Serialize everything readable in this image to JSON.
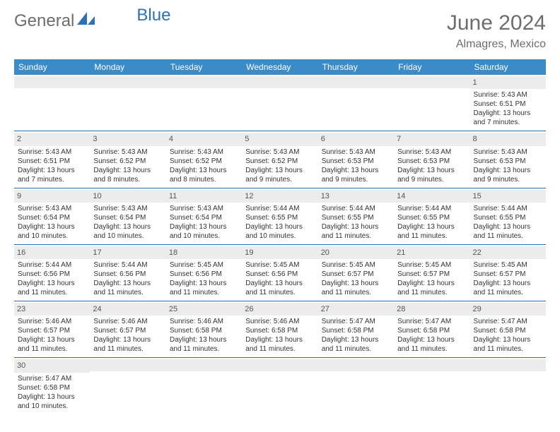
{
  "brand": {
    "part1": "General",
    "part2": "Blue"
  },
  "title": {
    "month": "June 2024",
    "location": "Almagres, Mexico"
  },
  "colors": {
    "header_bg": "#3b8bc9",
    "row_divider": "#2d6da8",
    "daynum_bg": "#ececec",
    "text": "#333333",
    "title_text": "#6d6d6d"
  },
  "weekday_labels": [
    "Sunday",
    "Monday",
    "Tuesday",
    "Wednesday",
    "Thursday",
    "Friday",
    "Saturday"
  ],
  "weeks": [
    [
      {
        "n": "",
        "lines": []
      },
      {
        "n": "",
        "lines": []
      },
      {
        "n": "",
        "lines": []
      },
      {
        "n": "",
        "lines": []
      },
      {
        "n": "",
        "lines": []
      },
      {
        "n": "",
        "lines": []
      },
      {
        "n": "1",
        "lines": [
          "Sunrise: 5:43 AM",
          "Sunset: 6:51 PM",
          "Daylight: 13 hours and 7 minutes."
        ]
      }
    ],
    [
      {
        "n": "2",
        "lines": [
          "Sunrise: 5:43 AM",
          "Sunset: 6:51 PM",
          "Daylight: 13 hours and 7 minutes."
        ]
      },
      {
        "n": "3",
        "lines": [
          "Sunrise: 5:43 AM",
          "Sunset: 6:52 PM",
          "Daylight: 13 hours and 8 minutes."
        ]
      },
      {
        "n": "4",
        "lines": [
          "Sunrise: 5:43 AM",
          "Sunset: 6:52 PM",
          "Daylight: 13 hours and 8 minutes."
        ]
      },
      {
        "n": "5",
        "lines": [
          "Sunrise: 5:43 AM",
          "Sunset: 6:52 PM",
          "Daylight: 13 hours and 9 minutes."
        ]
      },
      {
        "n": "6",
        "lines": [
          "Sunrise: 5:43 AM",
          "Sunset: 6:53 PM",
          "Daylight: 13 hours and 9 minutes."
        ]
      },
      {
        "n": "7",
        "lines": [
          "Sunrise: 5:43 AM",
          "Sunset: 6:53 PM",
          "Daylight: 13 hours and 9 minutes."
        ]
      },
      {
        "n": "8",
        "lines": [
          "Sunrise: 5:43 AM",
          "Sunset: 6:53 PM",
          "Daylight: 13 hours and 9 minutes."
        ]
      }
    ],
    [
      {
        "n": "9",
        "lines": [
          "Sunrise: 5:43 AM",
          "Sunset: 6:54 PM",
          "Daylight: 13 hours and 10 minutes."
        ]
      },
      {
        "n": "10",
        "lines": [
          "Sunrise: 5:43 AM",
          "Sunset: 6:54 PM",
          "Daylight: 13 hours and 10 minutes."
        ]
      },
      {
        "n": "11",
        "lines": [
          "Sunrise: 5:43 AM",
          "Sunset: 6:54 PM",
          "Daylight: 13 hours and 10 minutes."
        ]
      },
      {
        "n": "12",
        "lines": [
          "Sunrise: 5:44 AM",
          "Sunset: 6:55 PM",
          "Daylight: 13 hours and 10 minutes."
        ]
      },
      {
        "n": "13",
        "lines": [
          "Sunrise: 5:44 AM",
          "Sunset: 6:55 PM",
          "Daylight: 13 hours and 11 minutes."
        ]
      },
      {
        "n": "14",
        "lines": [
          "Sunrise: 5:44 AM",
          "Sunset: 6:55 PM",
          "Daylight: 13 hours and 11 minutes."
        ]
      },
      {
        "n": "15",
        "lines": [
          "Sunrise: 5:44 AM",
          "Sunset: 6:55 PM",
          "Daylight: 13 hours and 11 minutes."
        ]
      }
    ],
    [
      {
        "n": "16",
        "lines": [
          "Sunrise: 5:44 AM",
          "Sunset: 6:56 PM",
          "Daylight: 13 hours and 11 minutes."
        ]
      },
      {
        "n": "17",
        "lines": [
          "Sunrise: 5:44 AM",
          "Sunset: 6:56 PM",
          "Daylight: 13 hours and 11 minutes."
        ]
      },
      {
        "n": "18",
        "lines": [
          "Sunrise: 5:45 AM",
          "Sunset: 6:56 PM",
          "Daylight: 13 hours and 11 minutes."
        ]
      },
      {
        "n": "19",
        "lines": [
          "Sunrise: 5:45 AM",
          "Sunset: 6:56 PM",
          "Daylight: 13 hours and 11 minutes."
        ]
      },
      {
        "n": "20",
        "lines": [
          "Sunrise: 5:45 AM",
          "Sunset: 6:57 PM",
          "Daylight: 13 hours and 11 minutes."
        ]
      },
      {
        "n": "21",
        "lines": [
          "Sunrise: 5:45 AM",
          "Sunset: 6:57 PM",
          "Daylight: 13 hours and 11 minutes."
        ]
      },
      {
        "n": "22",
        "lines": [
          "Sunrise: 5:45 AM",
          "Sunset: 6:57 PM",
          "Daylight: 13 hours and 11 minutes."
        ]
      }
    ],
    [
      {
        "n": "23",
        "lines": [
          "Sunrise: 5:46 AM",
          "Sunset: 6:57 PM",
          "Daylight: 13 hours and 11 minutes."
        ]
      },
      {
        "n": "24",
        "lines": [
          "Sunrise: 5:46 AM",
          "Sunset: 6:57 PM",
          "Daylight: 13 hours and 11 minutes."
        ]
      },
      {
        "n": "25",
        "lines": [
          "Sunrise: 5:46 AM",
          "Sunset: 6:58 PM",
          "Daylight: 13 hours and 11 minutes."
        ]
      },
      {
        "n": "26",
        "lines": [
          "Sunrise: 5:46 AM",
          "Sunset: 6:58 PM",
          "Daylight: 13 hours and 11 minutes."
        ]
      },
      {
        "n": "27",
        "lines": [
          "Sunrise: 5:47 AM",
          "Sunset: 6:58 PM",
          "Daylight: 13 hours and 11 minutes."
        ]
      },
      {
        "n": "28",
        "lines": [
          "Sunrise: 5:47 AM",
          "Sunset: 6:58 PM",
          "Daylight: 13 hours and 11 minutes."
        ]
      },
      {
        "n": "29",
        "lines": [
          "Sunrise: 5:47 AM",
          "Sunset: 6:58 PM",
          "Daylight: 13 hours and 11 minutes."
        ]
      }
    ],
    [
      {
        "n": "30",
        "lines": [
          "Sunrise: 5:47 AM",
          "Sunset: 6:58 PM",
          "Daylight: 13 hours and 10 minutes."
        ]
      },
      {
        "n": "",
        "lines": []
      },
      {
        "n": "",
        "lines": []
      },
      {
        "n": "",
        "lines": []
      },
      {
        "n": "",
        "lines": []
      },
      {
        "n": "",
        "lines": []
      },
      {
        "n": "",
        "lines": []
      }
    ]
  ]
}
